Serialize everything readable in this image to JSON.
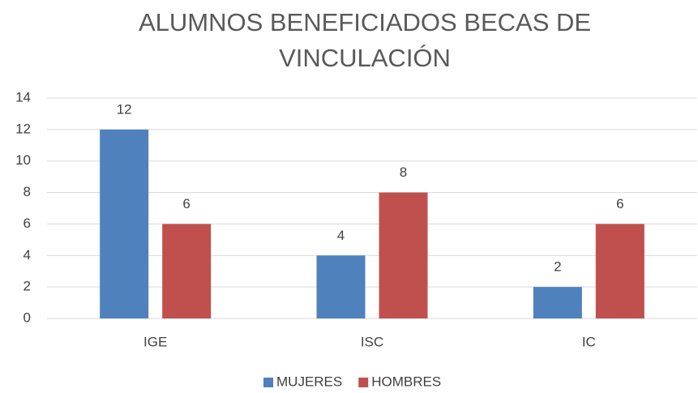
{
  "chart_data": {
    "type": "bar",
    "title": "ALUMNOS BENEFICIADOS BECAS DE VINCULACIÓN",
    "categories": [
      "IGE",
      "ISC",
      "IC"
    ],
    "series": [
      {
        "name": "MUJERES",
        "color": "#4f81bd",
        "values": [
          12,
          4,
          2
        ]
      },
      {
        "name": "HOMBRES",
        "color": "#c0504d",
        "values": [
          6,
          8,
          6
        ]
      }
    ],
    "ylim": [
      0,
      14
    ],
    "yticks": [
      0,
      2,
      4,
      6,
      8,
      10,
      12,
      14
    ],
    "grid": true,
    "legend": "bottom"
  }
}
